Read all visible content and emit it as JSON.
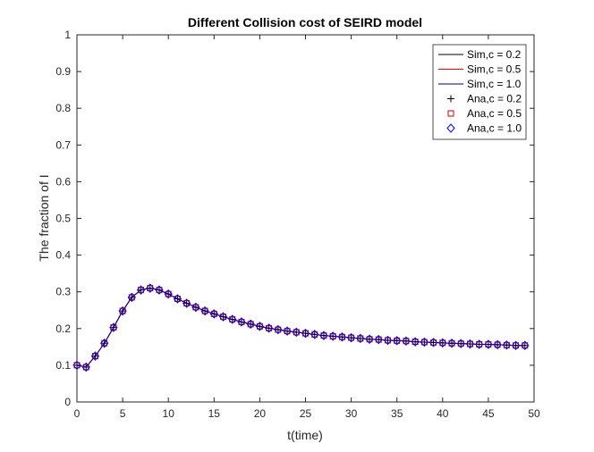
{
  "chart_data": {
    "type": "line",
    "title": "Different Collision cost of SEIRD model",
    "xlabel": "t(time)",
    "ylabel": "The fraction of I",
    "xlim": [
      0,
      50
    ],
    "ylim": [
      0,
      1
    ],
    "xticks": [
      0,
      5,
      10,
      15,
      20,
      25,
      30,
      35,
      40,
      45,
      50
    ],
    "yticks": [
      0,
      0.1,
      0.2,
      0.3,
      0.4,
      0.5,
      0.6,
      0.7,
      0.8,
      0.9,
      1
    ],
    "xtick_labels": [
      "0",
      "5",
      "10",
      "15",
      "20",
      "25",
      "30",
      "35",
      "40",
      "45",
      "50"
    ],
    "ytick_labels": [
      "0",
      "0.1",
      "0.2",
      "0.3",
      "0.4",
      "0.5",
      "0.6",
      "0.7",
      "0.8",
      "0.9",
      "1"
    ],
    "grid": false,
    "legend_position": "top-right",
    "x": [
      0,
      1,
      2,
      3,
      4,
      5,
      6,
      7,
      8,
      9,
      10,
      11,
      12,
      13,
      14,
      15,
      16,
      17,
      18,
      19,
      20,
      21,
      22,
      23,
      24,
      25,
      26,
      27,
      28,
      29,
      30,
      31,
      32,
      33,
      34,
      35,
      36,
      37,
      38,
      39,
      40,
      41,
      42,
      43,
      44,
      45,
      46,
      47,
      48,
      49
    ],
    "series": [
      {
        "name": "Sim,c = 0.2",
        "kind": "line",
        "color": "#000000",
        "values": [
          0.1,
          0.095,
          0.125,
          0.16,
          0.203,
          0.248,
          0.285,
          0.305,
          0.31,
          0.305,
          0.294,
          0.281,
          0.269,
          0.258,
          0.248,
          0.24,
          0.232,
          0.225,
          0.218,
          0.212,
          0.206,
          0.201,
          0.197,
          0.193,
          0.19,
          0.187,
          0.184,
          0.181,
          0.179,
          0.177,
          0.175,
          0.173,
          0.171,
          0.17,
          0.168,
          0.167,
          0.166,
          0.164,
          0.163,
          0.162,
          0.161,
          0.16,
          0.159,
          0.158,
          0.157,
          0.157,
          0.156,
          0.155,
          0.154,
          0.154
        ]
      },
      {
        "name": "Sim,c = 0.5",
        "kind": "line",
        "color": "#ff0000",
        "values": [
          0.1,
          0.095,
          0.125,
          0.16,
          0.203,
          0.248,
          0.285,
          0.305,
          0.31,
          0.305,
          0.294,
          0.281,
          0.269,
          0.258,
          0.248,
          0.24,
          0.232,
          0.225,
          0.218,
          0.212,
          0.206,
          0.201,
          0.197,
          0.193,
          0.19,
          0.187,
          0.184,
          0.181,
          0.179,
          0.177,
          0.175,
          0.173,
          0.171,
          0.17,
          0.168,
          0.167,
          0.166,
          0.164,
          0.163,
          0.162,
          0.161,
          0.16,
          0.159,
          0.158,
          0.157,
          0.157,
          0.156,
          0.155,
          0.154,
          0.154
        ]
      },
      {
        "name": "Sim,c = 1.0",
        "kind": "line",
        "color": "#00007f",
        "values": [
          0.1,
          0.095,
          0.125,
          0.16,
          0.203,
          0.248,
          0.285,
          0.305,
          0.31,
          0.305,
          0.294,
          0.281,
          0.269,
          0.258,
          0.248,
          0.24,
          0.232,
          0.225,
          0.218,
          0.212,
          0.206,
          0.201,
          0.197,
          0.193,
          0.19,
          0.187,
          0.184,
          0.181,
          0.179,
          0.177,
          0.175,
          0.173,
          0.171,
          0.17,
          0.168,
          0.167,
          0.166,
          0.164,
          0.163,
          0.162,
          0.161,
          0.16,
          0.159,
          0.158,
          0.157,
          0.157,
          0.156,
          0.155,
          0.154,
          0.154
        ]
      },
      {
        "name": "Ana,c = 0.2",
        "kind": "marker",
        "marker": "plus",
        "color": "#000000",
        "values": [
          0.1,
          0.095,
          0.125,
          0.16,
          0.203,
          0.248,
          0.285,
          0.305,
          0.31,
          0.305,
          0.294,
          0.281,
          0.269,
          0.258,
          0.248,
          0.24,
          0.232,
          0.225,
          0.218,
          0.212,
          0.206,
          0.201,
          0.197,
          0.193,
          0.19,
          0.187,
          0.184,
          0.181,
          0.179,
          0.177,
          0.175,
          0.173,
          0.171,
          0.17,
          0.168,
          0.167,
          0.166,
          0.164,
          0.163,
          0.162,
          0.161,
          0.16,
          0.159,
          0.158,
          0.157,
          0.157,
          0.156,
          0.155,
          0.154,
          0.154
        ]
      },
      {
        "name": "Ana,c = 0.5",
        "kind": "marker",
        "marker": "square",
        "color": "#cc0000",
        "values": [
          0.1,
          0.095,
          0.125,
          0.16,
          0.203,
          0.248,
          0.285,
          0.305,
          0.31,
          0.305,
          0.294,
          0.281,
          0.269,
          0.258,
          0.248,
          0.24,
          0.232,
          0.225,
          0.218,
          0.212,
          0.206,
          0.201,
          0.197,
          0.193,
          0.19,
          0.187,
          0.184,
          0.181,
          0.179,
          0.177,
          0.175,
          0.173,
          0.171,
          0.17,
          0.168,
          0.167,
          0.166,
          0.164,
          0.163,
          0.162,
          0.161,
          0.16,
          0.159,
          0.158,
          0.157,
          0.157,
          0.156,
          0.155,
          0.154,
          0.154
        ]
      },
      {
        "name": "Ana,c = 1.0",
        "kind": "marker",
        "marker": "diamond",
        "color": "#0000ff",
        "values": [
          0.1,
          0.095,
          0.125,
          0.16,
          0.203,
          0.248,
          0.285,
          0.305,
          0.31,
          0.305,
          0.294,
          0.281,
          0.269,
          0.258,
          0.248,
          0.24,
          0.232,
          0.225,
          0.218,
          0.212,
          0.206,
          0.201,
          0.197,
          0.193,
          0.19,
          0.187,
          0.184,
          0.181,
          0.179,
          0.177,
          0.175,
          0.173,
          0.171,
          0.17,
          0.168,
          0.167,
          0.166,
          0.164,
          0.163,
          0.162,
          0.161,
          0.16,
          0.159,
          0.158,
          0.157,
          0.157,
          0.156,
          0.155,
          0.154,
          0.154
        ]
      }
    ]
  }
}
